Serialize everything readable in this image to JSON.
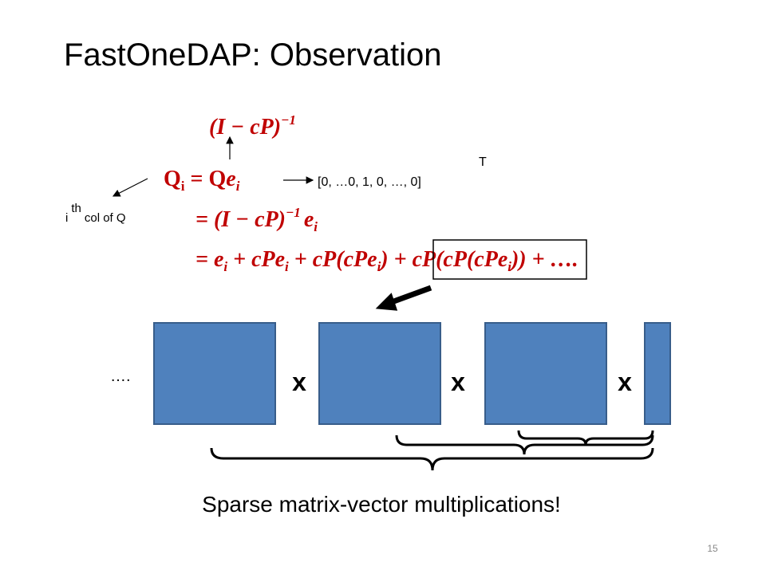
{
  "title": "FastOneDAP: Observation",
  "inverse": [
    "(I − cP)",
    "−1"
  ],
  "qi": [
    "Q",
    "i",
    " = Q",
    "e",
    "i"
  ],
  "unit_vector": "[0, …0, 1, 0, …, 0]",
  "transpose": "T",
  "column_note": [
    "i",
    "th",
    "col of Q"
  ],
  "line2": [
    "= (I − cP)",
    "−1",
    "e",
    "i"
  ],
  "line3": [
    "= e",
    "i",
    " + cPe",
    "i",
    " + cP(cPe",
    "i",
    ") + ",
    "cP(cP(cPe",
    "i",
    "))",
    " + …."
  ],
  "dots": "….",
  "times": [
    "x",
    "x",
    "x"
  ],
  "caption": "Sparse matrix-vector multiplications!",
  "page_number": "15"
}
